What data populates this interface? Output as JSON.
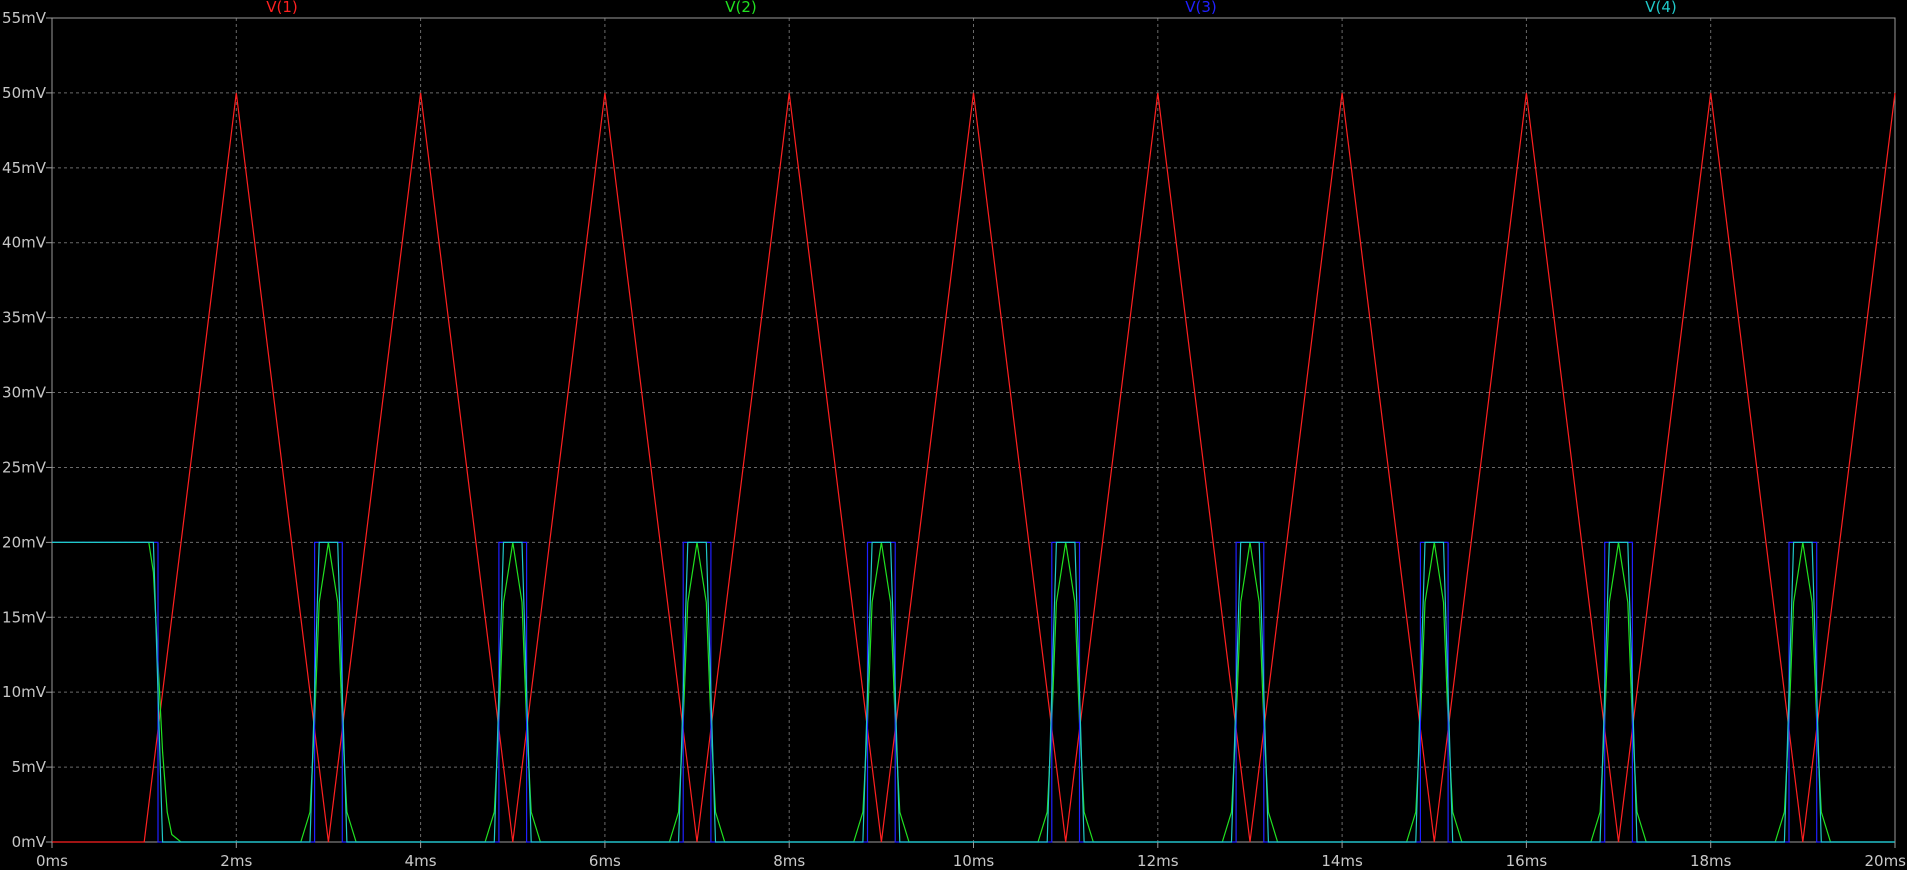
{
  "chart_data": {
    "type": "line",
    "xlabel": "",
    "ylabel": "",
    "xlim": [
      0,
      20
    ],
    "ylim": [
      0,
      55
    ],
    "grid": true,
    "legend_position": "top",
    "x_ticks": [
      "0ms",
      "2ms",
      "4ms",
      "6ms",
      "8ms",
      "10ms",
      "12ms",
      "14ms",
      "16ms",
      "18ms",
      "20ms"
    ],
    "y_ticks": [
      "0mV",
      "5mV",
      "10mV",
      "15mV",
      "20mV",
      "25mV",
      "30mV",
      "35mV",
      "40mV",
      "45mV",
      "50mV",
      "55mV"
    ],
    "x_tick_values": [
      0,
      2,
      4,
      6,
      8,
      10,
      12,
      14,
      16,
      18,
      20
    ],
    "y_tick_values": [
      0,
      5,
      10,
      15,
      20,
      25,
      30,
      35,
      40,
      45,
      50,
      55
    ],
    "series": [
      {
        "name": "V(1)",
        "color": "#ff2020",
        "x": [
          0,
          1,
          2,
          3,
          4,
          5,
          6,
          7,
          8,
          9,
          10,
          11,
          12,
          13,
          14,
          15,
          16,
          17,
          18,
          19,
          20
        ],
        "y": [
          0,
          0,
          50,
          0,
          50,
          0,
          50,
          0,
          50,
          0,
          50,
          0,
          50,
          0,
          50,
          0,
          50,
          0,
          50,
          0,
          50
        ]
      },
      {
        "name": "V(2)",
        "color": "#20e020",
        "x": [
          0,
          1.05,
          1.1,
          1.15,
          1.2,
          1.25,
          1.3,
          1.4,
          1.6,
          2.7,
          2.8,
          2.85,
          2.9,
          3.0,
          3.1,
          3.15,
          3.2,
          3.3,
          4.7,
          4.8,
          4.85,
          4.9,
          5.0,
          5.1,
          5.15,
          5.2,
          5.3,
          6.7,
          6.8,
          6.85,
          6.9,
          7.0,
          7.1,
          7.15,
          7.2,
          7.3,
          8.7,
          8.8,
          8.85,
          8.9,
          9.0,
          9.1,
          9.15,
          9.2,
          9.3,
          10.7,
          10.8,
          10.85,
          10.9,
          11.0,
          11.1,
          11.15,
          11.2,
          11.3,
          12.7,
          12.8,
          12.85,
          12.9,
          13.0,
          13.1,
          13.15,
          13.2,
          13.3,
          14.7,
          14.8,
          14.85,
          14.9,
          15.0,
          15.1,
          15.15,
          15.2,
          15.3,
          16.7,
          16.8,
          16.85,
          16.9,
          17.0,
          17.1,
          17.15,
          17.2,
          17.3,
          18.7,
          18.8,
          18.85,
          18.9,
          19.0,
          19.1,
          19.15,
          19.2,
          19.3,
          20
        ],
        "y": [
          20,
          20,
          18,
          12,
          6,
          2,
          0.5,
          0,
          0,
          0,
          2,
          8,
          16,
          20,
          16,
          8,
          2,
          0,
          0,
          2,
          8,
          16,
          20,
          16,
          8,
          2,
          0,
          0,
          2,
          8,
          16,
          20,
          16,
          8,
          2,
          0,
          0,
          2,
          8,
          16,
          20,
          16,
          8,
          2,
          0,
          0,
          2,
          8,
          16,
          20,
          16,
          8,
          2,
          0,
          0,
          2,
          8,
          16,
          20,
          16,
          8,
          2,
          0,
          0,
          2,
          8,
          16,
          20,
          16,
          8,
          2,
          0,
          0,
          2,
          8,
          16,
          20,
          16,
          8,
          2,
          0,
          0,
          2,
          8,
          16,
          20,
          16,
          8,
          2,
          0,
          0
        ]
      },
      {
        "name": "V(3)",
        "color": "#2020ff",
        "x": [
          0,
          1.15,
          1.15,
          2.85,
          2.85,
          3.15,
          3.15,
          4.85,
          4.85,
          5.15,
          5.15,
          6.85,
          6.85,
          7.15,
          7.15,
          8.85,
          8.85,
          9.15,
          9.15,
          10.85,
          10.85,
          11.15,
          11.15,
          12.85,
          12.85,
          13.15,
          13.15,
          14.85,
          14.85,
          15.15,
          15.15,
          16.85,
          16.85,
          17.15,
          17.15,
          18.85,
          18.85,
          19.15,
          19.15,
          20
        ],
        "y": [
          20,
          20,
          0,
          0,
          20,
          20,
          0,
          0,
          20,
          20,
          0,
          0,
          20,
          20,
          0,
          0,
          20,
          20,
          0,
          0,
          20,
          20,
          0,
          0,
          20,
          20,
          0,
          0,
          20,
          20,
          0,
          0,
          20,
          20,
          0,
          0,
          20,
          20,
          0,
          0
        ]
      },
      {
        "name": "V(4)",
        "color": "#20c8c8",
        "x": [
          0,
          1.1,
          1.2,
          2.8,
          2.9,
          3.1,
          3.2,
          4.8,
          4.9,
          5.1,
          5.2,
          6.8,
          6.9,
          7.1,
          7.2,
          8.8,
          8.9,
          9.1,
          9.2,
          10.8,
          10.9,
          11.1,
          11.2,
          12.8,
          12.9,
          13.1,
          13.2,
          14.8,
          14.9,
          15.1,
          15.2,
          16.8,
          16.9,
          17.1,
          17.2,
          18.8,
          18.9,
          19.1,
          19.2,
          20
        ],
        "y": [
          20,
          20,
          0,
          0,
          20,
          20,
          0,
          0,
          20,
          20,
          0,
          0,
          20,
          20,
          0,
          0,
          20,
          20,
          0,
          0,
          20,
          20,
          0,
          0,
          20,
          20,
          0,
          0,
          20,
          20,
          0,
          0,
          20,
          20,
          0,
          0,
          20,
          20,
          0,
          0
        ]
      }
    ]
  }
}
